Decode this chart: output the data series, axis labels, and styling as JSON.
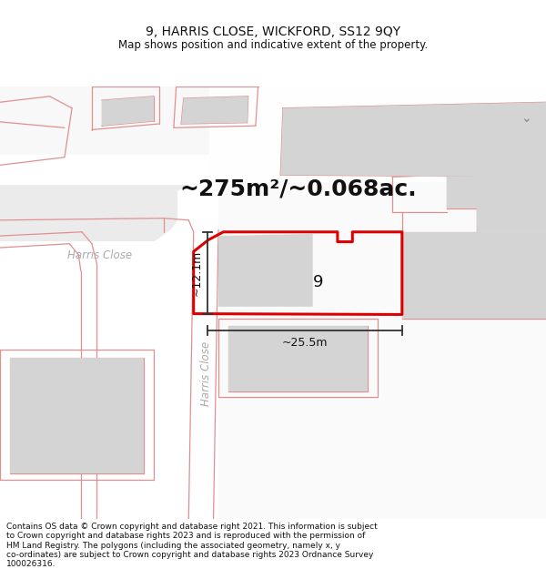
{
  "title": "9, HARRIS CLOSE, WICKFORD, SS12 9QY",
  "subtitle": "Map shows position and indicative extent of the property.",
  "footer": "Contains OS data © Crown copyright and database right 2021. This information is subject to Crown copyright and database rights 2023 and is reproduced with the permission of HM Land Registry. The polygons (including the associated geometry, namely x, y co-ordinates) are subject to Crown copyright and database rights 2023 Ordnance Survey 100026316.",
  "area_label": "~275m²/~0.068ac.",
  "width_label": "~25.5m",
  "height_label": "~12.1m",
  "plot_number": "9",
  "road_label_h": "Harris Close",
  "road_label_v": "Harris Close",
  "bg_color": "#ffffff",
  "map_bg": "#f0f0f0",
  "white_bg": "#ffffff",
  "road_surface": "#e6e6e6",
  "building_color": "#d4d4d4",
  "building_inner": "#c8c8c8",
  "plot_outline_color": "#dd0000",
  "dim_line_color": "#333333",
  "pink_line_color": "#e09090",
  "title_fontsize": 10,
  "subtitle_fontsize": 8.5,
  "footer_fontsize": 6.5,
  "area_fontsize": 18
}
